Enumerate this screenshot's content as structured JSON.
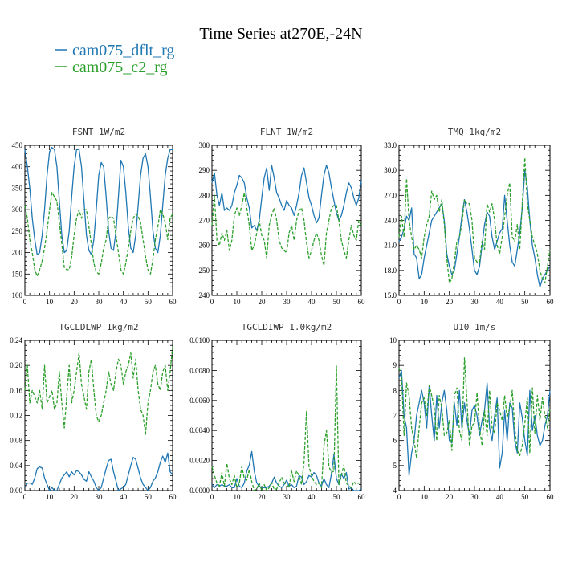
{
  "figure": {
    "title": "Time Series at270E,-24N",
    "legend": [
      {
        "name": "cam075_dflt_rg",
        "color": "#1f77b4",
        "dash": "solid"
      },
      {
        "name": "cam075_c2_rg",
        "color": "#2ca02c",
        "dash": "dashed"
      }
    ]
  },
  "chart_data": [
    {
      "type": "line",
      "title": "FSNT   1W/m2",
      "xlim": [
        0,
        60
      ],
      "ylim": [
        100,
        450
      ],
      "xticks": [
        0,
        10,
        20,
        30,
        40,
        50,
        60
      ],
      "yticks": [
        100,
        150,
        200,
        250,
        300,
        350,
        400,
        450
      ],
      "ytick_labels": [
        "100",
        "150",
        "200",
        "250",
        "300",
        "350",
        "400",
        "450"
      ],
      "x_start": 0,
      "series": [
        {
          "name": "cam075_dflt_rg",
          "values": [
            440,
            400,
            350,
            280,
            230,
            195,
            200,
            240,
            300,
            380,
            435,
            445,
            440,
            400,
            320,
            240,
            200,
            205,
            250,
            330,
            400,
            440,
            440,
            400,
            320,
            240,
            205,
            195,
            230,
            300,
            380,
            410,
            400,
            330,
            250,
            210,
            205,
            250,
            330,
            415,
            400,
            340,
            260,
            210,
            200,
            240,
            310,
            380,
            420,
            430,
            400,
            330,
            250,
            210,
            200,
            240,
            310,
            380,
            420,
            440,
            440
          ]
        },
        {
          "name": "cam075_c2_rg",
          "values": [
            310,
            280,
            230,
            200,
            160,
            145,
            160,
            180,
            210,
            250,
            300,
            340,
            330,
            320,
            270,
            220,
            165,
            160,
            160,
            190,
            240,
            280,
            300,
            280,
            300,
            300,
            260,
            220,
            175,
            155,
            150,
            175,
            210,
            230,
            280,
            285,
            280,
            240,
            200,
            160,
            150,
            175,
            210,
            250,
            280,
            290,
            285,
            270,
            230,
            190,
            160,
            150,
            185,
            230,
            260,
            300,
            290,
            270,
            230,
            280,
            290
          ]
        }
      ]
    },
    {
      "type": "line",
      "title": "FLNT   1W/m2",
      "xlim": [
        0,
        60
      ],
      "ylim": [
        240,
        300
      ],
      "xticks": [
        0,
        10,
        20,
        30,
        40,
        50,
        60
      ],
      "yticks": [
        240,
        250,
        260,
        270,
        280,
        290,
        300
      ],
      "ytick_labels": [
        "240",
        "250",
        "260",
        "270",
        "280",
        "290",
        "300"
      ],
      "x_start": 0,
      "series": [
        {
          "name": "cam075_dflt_rg",
          "values": [
            285,
            289,
            280,
            276,
            281,
            274,
            275,
            274,
            276,
            281,
            284,
            288,
            287,
            285,
            279,
            275,
            267,
            268,
            266,
            270,
            279,
            287,
            291,
            282,
            292,
            287,
            281,
            279,
            276,
            274,
            278,
            276,
            275,
            272,
            276,
            281,
            288,
            291,
            285,
            279,
            276,
            272,
            269,
            271,
            280,
            288,
            292,
            289,
            283,
            278,
            273,
            270,
            272,
            276,
            281,
            285,
            283,
            279,
            276,
            279,
            286
          ]
        },
        {
          "name": "cam075_c2_rg",
          "values": [
            268,
            280,
            262,
            260,
            265,
            262,
            266,
            258,
            262,
            272,
            275,
            272,
            276,
            281,
            275,
            268,
            258,
            260,
            265,
            270,
            264,
            262,
            255,
            268,
            272,
            275,
            270,
            262,
            259,
            258,
            257,
            265,
            268,
            262,
            270,
            274,
            275,
            270,
            261,
            255,
            258,
            262,
            265,
            262,
            256,
            252,
            265,
            270,
            275,
            276,
            276,
            270,
            262,
            258,
            255,
            262,
            268,
            264,
            262,
            270,
            268
          ]
        }
      ]
    },
    {
      "type": "line",
      "title": "TMQ   1kg/m2",
      "xlim": [
        0,
        60
      ],
      "ylim": [
        15,
        33
      ],
      "xticks": [
        0,
        10,
        20,
        30,
        40,
        50,
        60
      ],
      "yticks": [
        15,
        18,
        21,
        24,
        27,
        30,
        33
      ],
      "ytick_labels": [
        "15.0",
        "18.0",
        "21.0",
        "24.0",
        "27.0",
        "30.0",
        "33.0"
      ],
      "x_start": 0,
      "series": [
        {
          "name": "cam075_dflt_rg",
          "values": [
            21.5,
            22.0,
            23.0,
            24.5,
            24.0,
            25.5,
            20.0,
            19.5,
            17.0,
            17.5,
            19.5,
            21.0,
            22.5,
            24.0,
            24.5,
            25.0,
            25.5,
            26.0,
            24.0,
            20.0,
            18.5,
            17.5,
            18.0,
            20.0,
            22.0,
            24.5,
            26.5,
            25.0,
            23.0,
            20.5,
            18.0,
            17.5,
            18.5,
            21.0,
            23.5,
            25.0,
            24.5,
            22.0,
            20.5,
            21.5,
            22.5,
            23.0,
            27.0,
            24.0,
            21.0,
            19.0,
            18.5,
            20.5,
            22.5,
            25.5,
            30.0,
            28.0,
            24.0,
            21.0,
            19.5,
            17.5,
            16.0,
            17.0,
            17.5,
            18.0,
            18.5
          ]
        },
        {
          "name": "cam075_c2_rg",
          "values": [
            22.0,
            24.5,
            22.0,
            29.0,
            24.0,
            22.0,
            20.5,
            21.0,
            20.5,
            19.5,
            22.0,
            23.5,
            24.5,
            27.5,
            26.5,
            27.0,
            25.0,
            26.5,
            23.5,
            19.5,
            16.5,
            17.0,
            19.0,
            21.5,
            22.0,
            23.5,
            26.5,
            26.0,
            26.0,
            24.0,
            19.5,
            19.0,
            19.0,
            21.5,
            20.5,
            26.0,
            25.0,
            26.0,
            24.0,
            21.0,
            20.0,
            22.0,
            24.5,
            27.0,
            28.5,
            22.0,
            21.5,
            23.5,
            20.5,
            26.0,
            31.5,
            26.0,
            24.0,
            22.0,
            21.0,
            20.0,
            18.0,
            17.0,
            16.5,
            18.5,
            20.5
          ]
        }
      ]
    },
    {
      "type": "line",
      "title": "TGCLDLWP   1kg/m2",
      "xlim": [
        0,
        60
      ],
      "ylim": [
        0,
        0.24
      ],
      "xticks": [
        0,
        10,
        20,
        30,
        40,
        50,
        60
      ],
      "yticks": [
        0,
        0.04,
        0.08,
        0.12,
        0.16,
        0.2,
        0.24
      ],
      "ytick_labels": [
        "0.00",
        "0.04",
        "0.08",
        "0.12",
        "0.16",
        "0.20",
        "0.24"
      ],
      "x_start": 0,
      "series": [
        {
          "name": "cam075_dflt_rg",
          "values": [
            0.005,
            0.012,
            0.012,
            0.01,
            0.02,
            0.035,
            0.038,
            0.036,
            0.02,
            0.01,
            0.0,
            0.005,
            0.0,
            0.0,
            0.01,
            0.02,
            0.025,
            0.03,
            0.022,
            0.03,
            0.025,
            0.032,
            0.03,
            0.025,
            0.018,
            0.015,
            0.03,
            0.022,
            0.015,
            0.005,
            0.0,
            0.005,
            0.02,
            0.035,
            0.048,
            0.05,
            0.03,
            0.015,
            0.0,
            0.003,
            0.005,
            0.01,
            0.025,
            0.04,
            0.053,
            0.05,
            0.035,
            0.02,
            0.01,
            0.005,
            0.0,
            0.005,
            0.015,
            0.02,
            0.03,
            0.045,
            0.055,
            0.045,
            0.06,
            0.03,
            0.025
          ]
        },
        {
          "name": "cam075_c2_rg",
          "values": [
            0.16,
            0.2,
            0.14,
            0.16,
            0.15,
            0.14,
            0.16,
            0.13,
            0.2,
            0.14,
            0.15,
            0.16,
            0.13,
            0.14,
            0.19,
            0.14,
            0.1,
            0.15,
            0.2,
            0.14,
            0.16,
            0.19,
            0.22,
            0.17,
            0.15,
            0.13,
            0.19,
            0.21,
            0.16,
            0.12,
            0.11,
            0.12,
            0.14,
            0.16,
            0.19,
            0.17,
            0.16,
            0.19,
            0.21,
            0.2,
            0.17,
            0.19,
            0.2,
            0.22,
            0.18,
            0.21,
            0.16,
            0.13,
            0.12,
            0.09,
            0.14,
            0.16,
            0.19,
            0.2,
            0.17,
            0.16,
            0.19,
            0.2,
            0.16,
            0.19,
            0.23
          ]
        }
      ]
    },
    {
      "type": "line",
      "title": "TGCLDIWP   1.0kg/m2",
      "xlim": [
        0,
        60
      ],
      "ylim": [
        0,
        0.01
      ],
      "xticks": [
        0,
        10,
        20,
        30,
        40,
        50,
        60
      ],
      "yticks": [
        0,
        0.002,
        0.004,
        0.006,
        0.008,
        0.01
      ],
      "ytick_labels": [
        "0.0000",
        "0.0020",
        "0.0040",
        "0.0060",
        "0.0080",
        "0.0100"
      ],
      "x_start": 0,
      "series": [
        {
          "name": "cam075_dflt_rg",
          "values": [
            0.0004,
            0.0002,
            0.0004,
            0.0003,
            0.0004,
            0.0003,
            0.0003,
            0.0004,
            0.0002,
            0.0002,
            0.0008,
            0.0003,
            0.0002,
            0.0005,
            0.0013,
            0.0017,
            0.0026,
            0.0013,
            0.0005,
            0.0003,
            0.0002,
            0.0002,
            0.0002,
            0.0003,
            0.0005,
            0.0009,
            0.0005,
            0.0003,
            0.0002,
            0.0004,
            0.0007,
            0.0003,
            0.0004,
            0.0002,
            0.0003,
            0.001,
            0.0009,
            0.0004,
            0.0006,
            0.001,
            0.0009,
            0.0012,
            0.001,
            0.0005,
            0.0003,
            0.0008,
            0.0004,
            0.0002,
            0.0011,
            0.0024,
            0.0008,
            0.0004,
            0.0011,
            0.0008,
            0.0012,
            0.0001,
            0.0002,
            0.0,
            0.0,
            0.0,
            0.0001
          ]
        },
        {
          "name": "cam075_c2_rg",
          "values": [
            0.0016,
            0.001,
            0.0005,
            0.0003,
            0.0012,
            0.0003,
            0.0018,
            0.0008,
            0.0004,
            0.001,
            0.0002,
            0.0005,
            0.0016,
            0.0008,
            0.0007,
            0.0014,
            0.0006,
            0.0,
            0.0001,
            0.0005,
            0.0,
            0.0004,
            0.0,
            0.0002,
            0.0005,
            0.0001,
            0.0001,
            0.0005,
            0.0009,
            0.0005,
            0.0004,
            0.0002,
            0.0013,
            0.0006,
            0.0013,
            0.001,
            0.0004,
            0.0019,
            0.0053,
            0.0016,
            0.001,
            0.0006,
            0.0004,
            0.0005,
            0.0002,
            0.003,
            0.004,
            0.0016,
            0.0012,
            0.0013,
            0.0083,
            0.0004,
            0.001,
            0.0017,
            0.0005,
            0.0003,
            0.0002,
            0.0006,
            0.0004,
            0.0005,
            0.0005
          ]
        }
      ]
    },
    {
      "type": "line",
      "title": "U10   1m/s",
      "xlim": [
        0,
        60
      ],
      "ylim": [
        4,
        10
      ],
      "xticks": [
        0,
        10,
        20,
        30,
        40,
        50,
        60
      ],
      "yticks": [
        4,
        5,
        6,
        7,
        8,
        9,
        10
      ],
      "ytick_labels": [
        "4",
        "5",
        "6",
        "7",
        "8",
        "9",
        "10"
      ],
      "x_start": 0,
      "series": [
        {
          "name": "cam075_dflt_rg",
          "values": [
            8.5,
            8.8,
            7.0,
            6.5,
            4.6,
            5.5,
            6.0,
            7.0,
            7.5,
            8.0,
            7.5,
            6.5,
            8.2,
            7.0,
            6.0,
            7.8,
            6.5,
            7.5,
            8.0,
            7.2,
            6.0,
            5.9,
            7.5,
            6.6,
            8.0,
            6.5,
            7.5,
            6.8,
            6.2,
            7.2,
            7.4,
            7.0,
            6.2,
            6.8,
            7.2,
            8.3,
            6.5,
            6.0,
            7.0,
            7.7,
            4.9,
            5.5,
            7.2,
            6.0,
            7.5,
            7.3,
            6.0,
            5.5,
            7.5,
            6.9,
            6.0,
            5.4,
            8.0,
            6.4,
            7.0,
            6.2,
            5.8,
            6.0,
            6.6,
            7.0,
            8.0
          ]
        },
        {
          "name": "cam075_c2_rg",
          "values": [
            8.9,
            8.6,
            6.2,
            8.3,
            7.8,
            6.5,
            6.0,
            5.3,
            6.5,
            7.5,
            7.7,
            7.0,
            8.2,
            7.8,
            7.3,
            6.0,
            7.8,
            7.3,
            6.2,
            6.3,
            6.8,
            5.6,
            7.8,
            8.1,
            6.4,
            6.0,
            9.3,
            7.6,
            5.8,
            6.6,
            6.7,
            7.9,
            6.5,
            5.8,
            7.2,
            6.2,
            8.0,
            6.5,
            6.3,
            7.5,
            7.2,
            6.8,
            7.8,
            6.9,
            7.3,
            8.0,
            6.5,
            5.6,
            5.4,
            5.8,
            6.7,
            7.7,
            5.5,
            8.1,
            6.3,
            7.8,
            6.8,
            7.7,
            7.0,
            6.5,
            7.3
          ]
        }
      ]
    }
  ]
}
